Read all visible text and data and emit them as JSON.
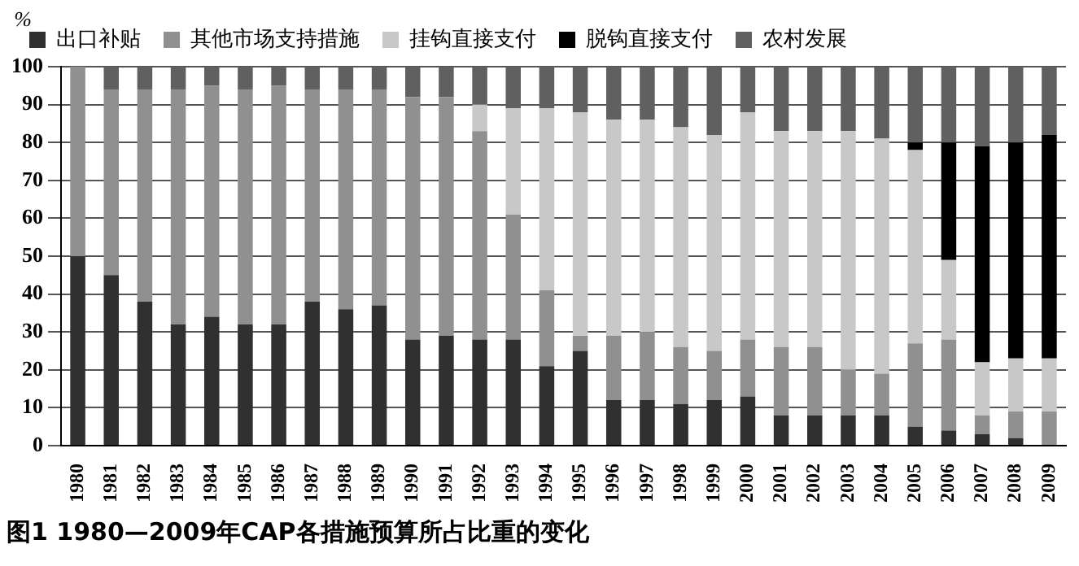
{
  "chart_data": {
    "type": "bar",
    "stacked": true,
    "title": "图1 1980—2009年CAP各措施预算所占比重的变化",
    "ylabel": "%",
    "categories": [
      "1980",
      "1981",
      "1982",
      "1983",
      "1984",
      "1985",
      "1986",
      "1987",
      "1988",
      "1989",
      "1990",
      "1991",
      "1992",
      "1993",
      "1994",
      "1995",
      "1996",
      "1997",
      "1998",
      "1999",
      "2000",
      "2001",
      "2002",
      "2003",
      "2004",
      "2005",
      "2006",
      "2007",
      "2008",
      "2009"
    ],
    "series": [
      {
        "name": "出口补贴",
        "color": "#303030",
        "values": [
          50,
          45,
          38,
          32,
          34,
          32,
          32,
          38,
          36,
          37,
          28,
          29,
          28,
          28,
          21,
          25,
          12,
          12,
          11,
          12,
          13,
          8,
          8,
          8,
          8,
          5,
          4,
          3,
          2,
          0
        ]
      },
      {
        "name": "其他市场支持措施",
        "color": "#909090",
        "values": [
          50,
          49,
          56,
          62,
          61,
          62,
          63,
          56,
          58,
          57,
          64,
          63,
          55,
          33,
          20,
          4,
          17,
          18,
          15,
          13,
          15,
          18,
          18,
          12,
          11,
          22,
          24,
          5,
          7,
          9
        ]
      },
      {
        "name": "挂钩直接支付",
        "color": "#c8c8c8",
        "values": [
          0,
          0,
          0,
          0,
          0,
          0,
          0,
          0,
          0,
          0,
          0,
          0,
          7,
          28,
          48,
          59,
          57,
          56,
          58,
          57,
          60,
          57,
          57,
          63,
          62,
          51,
          21,
          14,
          14,
          14
        ]
      },
      {
        "name": "脱钩直接支付",
        "color": "#000000",
        "values": [
          0,
          0,
          0,
          0,
          0,
          0,
          0,
          0,
          0,
          0,
          0,
          0,
          0,
          0,
          0,
          0,
          0,
          0,
          0,
          0,
          0,
          0,
          0,
          0,
          0,
          2,
          31,
          57,
          57,
          59
        ]
      },
      {
        "name": "农村发展",
        "color": "#606060",
        "values": [
          0,
          6,
          6,
          6,
          5,
          6,
          5,
          6,
          6,
          6,
          8,
          8,
          10,
          11,
          11,
          12,
          14,
          14,
          16,
          18,
          12,
          17,
          17,
          17,
          19,
          20,
          20,
          21,
          20,
          18
        ]
      }
    ],
    "ylim": [
      0,
      100
    ],
    "yticks": [
      0,
      10,
      20,
      30,
      40,
      50,
      60,
      70,
      80,
      90,
      100
    ],
    "grid": "y",
    "legend": "top"
  }
}
